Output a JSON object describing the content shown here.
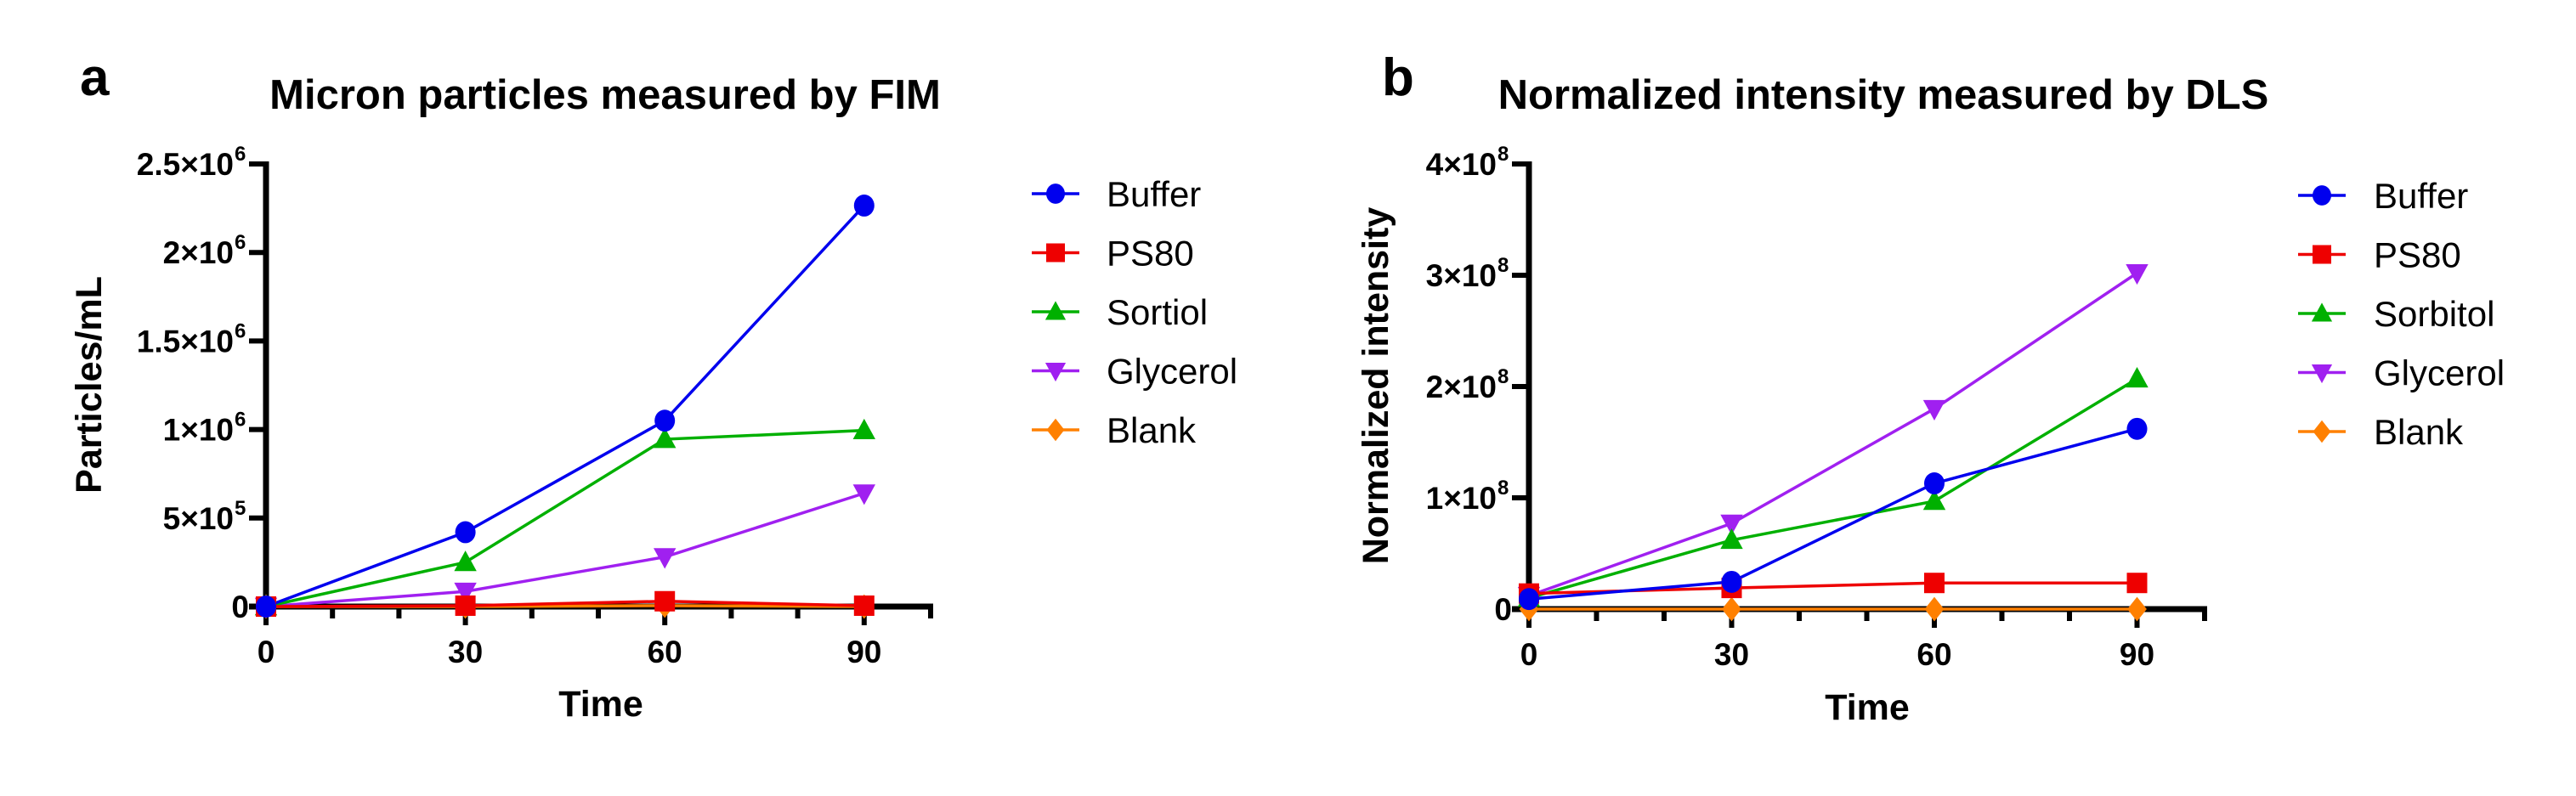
{
  "figure": {
    "panels": [
      {
        "letter": "a"
      },
      {
        "letter": "b"
      }
    ]
  },
  "chart_data": [
    {
      "type": "line",
      "panel": "a",
      "title": "Micron particles measured by FIM",
      "xlabel": "Time",
      "ylabel": "Particles/mL",
      "x": [
        0,
        30,
        60,
        90
      ],
      "xlim": [
        0,
        100
      ],
      "xticks": [
        0,
        30,
        60,
        90
      ],
      "xminor_ticks": [
        10,
        20,
        40,
        50,
        70,
        80,
        100
      ],
      "ylim": [
        0,
        2500000
      ],
      "yticks": [
        {
          "value": 0,
          "mantissa": "0",
          "exponent": ""
        },
        {
          "value": 500000,
          "mantissa": "5×10",
          "exponent": "5"
        },
        {
          "value": 1000000,
          "mantissa": "1×10",
          "exponent": "6"
        },
        {
          "value": 1500000,
          "mantissa": "1.5×10",
          "exponent": "6"
        },
        {
          "value": 2000000,
          "mantissa": "2×10",
          "exponent": "6"
        },
        {
          "value": 2500000,
          "mantissa": "2.5×10",
          "exponent": "6"
        }
      ],
      "grid": false,
      "legend_position": "right",
      "series": [
        {
          "name": "Buffer",
          "marker": "circle",
          "color": "#0000ee",
          "values": [
            0,
            420000,
            1050000,
            2265000
          ]
        },
        {
          "name": "PS80",
          "marker": "square",
          "color": "#ee0000",
          "values": [
            0,
            5000,
            30000,
            5000
          ]
        },
        {
          "name": "Sortiol",
          "marker": "triangle-up",
          "color": "#00b000",
          "values": [
            0,
            250000,
            945000,
            995000
          ]
        },
        {
          "name": "Glycerol",
          "marker": "triangle-down",
          "color": "#a020f0",
          "values": [
            0,
            85000,
            280000,
            640000
          ]
        },
        {
          "name": "Blank",
          "marker": "diamond",
          "color": "#ff8000",
          "values": [
            0,
            0,
            5000,
            0
          ]
        }
      ]
    },
    {
      "type": "line",
      "panel": "b",
      "title": "Normalized intensity measured by DLS",
      "xlabel": "Time",
      "ylabel": "Normalized intensity",
      "x": [
        0,
        30,
        60,
        90
      ],
      "xlim": [
        0,
        100
      ],
      "xticks": [
        0,
        30,
        60,
        90
      ],
      "xminor_ticks": [
        10,
        20,
        40,
        50,
        70,
        80,
        100
      ],
      "ylim": [
        0,
        400000000
      ],
      "yticks": [
        {
          "value": 0,
          "mantissa": "0",
          "exponent": ""
        },
        {
          "value": 100000000,
          "mantissa": "1×10",
          "exponent": "8"
        },
        {
          "value": 200000000,
          "mantissa": "2×10",
          "exponent": "8"
        },
        {
          "value": 300000000,
          "mantissa": "3×10",
          "exponent": "8"
        },
        {
          "value": 400000000,
          "mantissa": "4×10",
          "exponent": "8"
        }
      ],
      "grid": false,
      "legend_position": "right",
      "series": [
        {
          "name": "Buffer",
          "marker": "circle",
          "color": "#0000ee",
          "values": [
            9000000,
            24500000,
            113000000,
            162000000
          ]
        },
        {
          "name": "PS80",
          "marker": "square",
          "color": "#ee0000",
          "values": [
            14000000,
            19000000,
            23500000,
            23500000
          ]
        },
        {
          "name": "Sorbitol",
          "marker": "triangle-up",
          "color": "#00b000",
          "values": [
            10000000,
            62000000,
            97000000,
            207000000
          ]
        },
        {
          "name": "Glycerol",
          "marker": "triangle-down",
          "color": "#a020f0",
          "values": [
            12000000,
            77000000,
            180000000,
            302000000
          ]
        },
        {
          "name": "Blank",
          "marker": "diamond",
          "color": "#ff8000",
          "values": [
            0,
            0,
            0,
            0
          ]
        }
      ]
    }
  ]
}
